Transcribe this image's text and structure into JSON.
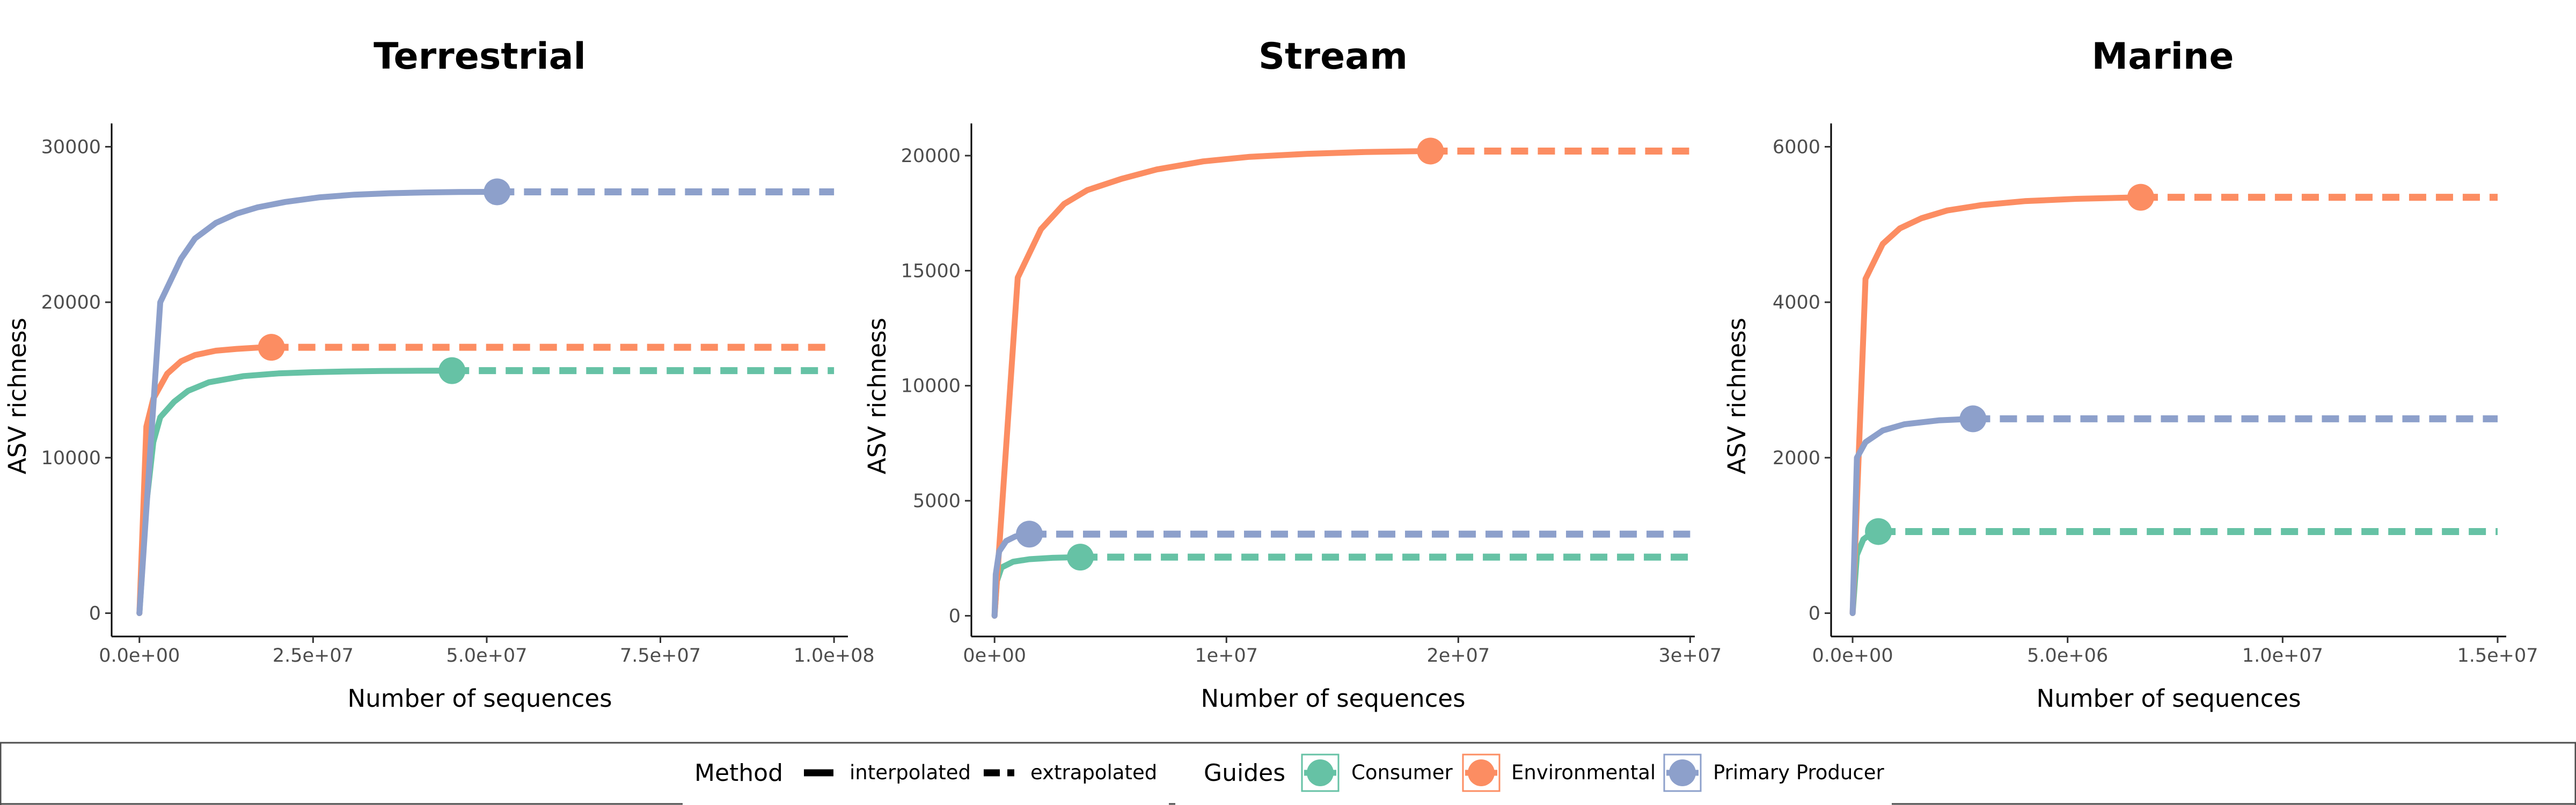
{
  "chart_data": [
    {
      "type": "line",
      "title": "Terrestrial",
      "xlabel": "Number of sequences",
      "ylabel": "ASV richness",
      "xlim": [
        -4000000,
        102000000
      ],
      "ylim": [
        -1500,
        31500
      ],
      "xticks": [
        0,
        25000000,
        50000000,
        75000000,
        100000000
      ],
      "xtick_labels": [
        "0.0e+00",
        "2.5e+07",
        "5.0e+07",
        "7.5e+07",
        "1.0e+08"
      ],
      "yticks": [
        0,
        10000,
        20000,
        30000
      ],
      "ytick_labels": [
        "0",
        "10000",
        "20000",
        "30000"
      ],
      "series": [
        {
          "name": "Consumer",
          "color": "#66c2a5",
          "observed": [
            45000000,
            15600
          ],
          "interpolated": [
            [
              0,
              0
            ],
            [
              1000000,
              7000
            ],
            [
              2000000,
              11000
            ],
            [
              3000000,
              12600
            ],
            [
              5000000,
              13600
            ],
            [
              7000000,
              14300
            ],
            [
              10000000,
              14850
            ],
            [
              15000000,
              15250
            ],
            [
              20000000,
              15420
            ],
            [
              25000000,
              15500
            ],
            [
              30000000,
              15550
            ],
            [
              35000000,
              15575
            ],
            [
              40000000,
              15590
            ],
            [
              45000000,
              15600
            ]
          ],
          "extrapolated": [
            [
              45000000,
              15600
            ],
            [
              100000000,
              15600
            ]
          ]
        },
        {
          "name": "Environmental",
          "color": "#fc8d62",
          "observed": [
            19000000,
            17100
          ],
          "interpolated": [
            [
              0,
              0
            ],
            [
              1000000,
              12000
            ],
            [
              2000000,
              13800
            ],
            [
              4000000,
              15400
            ],
            [
              6000000,
              16200
            ],
            [
              8000000,
              16600
            ],
            [
              11000000,
              16880
            ],
            [
              14000000,
              17000
            ],
            [
              17000000,
              17080
            ],
            [
              19000000,
              17100
            ]
          ],
          "extrapolated": [
            [
              19000000,
              17100
            ],
            [
              100000000,
              17100
            ]
          ]
        },
        {
          "name": "Primary Producer",
          "color": "#8da0cb",
          "observed": [
            51500000,
            27100
          ],
          "interpolated": [
            [
              0,
              0
            ],
            [
              1500000,
              10000
            ],
            [
              3000000,
              20000
            ],
            [
              6000000,
              22800
            ],
            [
              8000000,
              24100
            ],
            [
              11000000,
              25100
            ],
            [
              14000000,
              25700
            ],
            [
              17000000,
              26100
            ],
            [
              21000000,
              26450
            ],
            [
              26000000,
              26750
            ],
            [
              31000000,
              26920
            ],
            [
              36000000,
              27010
            ],
            [
              41000000,
              27060
            ],
            [
              46000000,
              27090
            ],
            [
              51500000,
              27100
            ]
          ],
          "extrapolated": [
            [
              51500000,
              27100
            ],
            [
              100000000,
              27100
            ]
          ]
        }
      ]
    },
    {
      "type": "line",
      "title": "Stream",
      "xlabel": "Number of sequences",
      "ylabel": "ASV richness",
      "xlim": [
        -1000000,
        30200000
      ],
      "ylim": [
        -900,
        21400
      ],
      "xticks": [
        0,
        10000000,
        20000000,
        30000000
      ],
      "xtick_labels": [
        "0e+00",
        "1e+07",
        "2e+07",
        "3e+07"
      ],
      "yticks": [
        0,
        5000,
        10000,
        15000,
        20000
      ],
      "ytick_labels": [
        "0",
        "5000",
        "10000",
        "15000",
        "20000"
      ],
      "series": [
        {
          "name": "Consumer",
          "color": "#66c2a5",
          "observed": [
            3700000,
            2550
          ],
          "interpolated": [
            [
              0,
              0
            ],
            [
              100000,
              1500
            ],
            [
              300000,
              2100
            ],
            [
              800000,
              2350
            ],
            [
              1500000,
              2460
            ],
            [
              2500000,
              2520
            ],
            [
              3700000,
              2550
            ]
          ],
          "extrapolated": [
            [
              3700000,
              2550
            ],
            [
              30000000,
              2550
            ]
          ]
        },
        {
          "name": "Environmental",
          "color": "#fc8d62",
          "observed": [
            18800000,
            20200
          ],
          "interpolated": [
            [
              0,
              0
            ],
            [
              1000000,
              14700
            ],
            [
              2000000,
              16800
            ],
            [
              3000000,
              17900
            ],
            [
              4000000,
              18500
            ],
            [
              5500000,
              19000
            ],
            [
              7000000,
              19400
            ],
            [
              9000000,
              19750
            ],
            [
              11000000,
              19950
            ],
            [
              13500000,
              20080
            ],
            [
              16000000,
              20160
            ],
            [
              18800000,
              20200
            ]
          ],
          "extrapolated": [
            [
              18800000,
              20200
            ],
            [
              30000000,
              20200
            ]
          ]
        },
        {
          "name": "Primary Producer",
          "color": "#8da0cb",
          "observed": [
            1500000,
            3550
          ],
          "interpolated": [
            [
              0,
              0
            ],
            [
              50000,
              1800
            ],
            [
              200000,
              2800
            ],
            [
              500000,
              3250
            ],
            [
              900000,
              3450
            ],
            [
              1500000,
              3550
            ]
          ],
          "extrapolated": [
            [
              1500000,
              3550
            ],
            [
              30000000,
              3550
            ]
          ]
        }
      ]
    },
    {
      "type": "line",
      "title": "Marine",
      "xlabel": "Number of sequences",
      "ylabel": "ASV richness",
      "xlim": [
        -500000,
        15200000
      ],
      "ylim": [
        -300,
        6300
      ],
      "xticks": [
        0,
        5000000,
        10000000,
        15000000
      ],
      "xtick_labels": [
        "0.0e+00",
        "5.0e+06",
        "1.0e+07",
        "1.5e+07"
      ],
      "yticks": [
        0,
        2000,
        4000,
        6000
      ],
      "ytick_labels": [
        "0",
        "2000",
        "4000",
        "6000"
      ],
      "series": [
        {
          "name": "Consumer",
          "color": "#66c2a5",
          "observed": [
            600000,
            1050
          ],
          "interpolated": [
            [
              0,
              0
            ],
            [
              100000,
              750
            ],
            [
              250000,
              950
            ],
            [
              400000,
              1010
            ],
            [
              600000,
              1050
            ]
          ],
          "extrapolated": [
            [
              600000,
              1050
            ],
            [
              15000000,
              1050
            ]
          ]
        },
        {
          "name": "Environmental",
          "color": "#fc8d62",
          "observed": [
            6700000,
            5350
          ],
          "interpolated": [
            [
              0,
              0
            ],
            [
              300000,
              4300
            ],
            [
              700000,
              4750
            ],
            [
              1100000,
              4950
            ],
            [
              1600000,
              5080
            ],
            [
              2200000,
              5180
            ],
            [
              3000000,
              5250
            ],
            [
              4000000,
              5300
            ],
            [
              5200000,
              5330
            ],
            [
              6700000,
              5350
            ]
          ],
          "extrapolated": [
            [
              6700000,
              5350
            ],
            [
              15000000,
              5350
            ]
          ]
        },
        {
          "name": "Primary Producer",
          "color": "#8da0cb",
          "observed": [
            2800000,
            2500
          ],
          "interpolated": [
            [
              0,
              0
            ],
            [
              100000,
              2000
            ],
            [
              300000,
              2200
            ],
            [
              700000,
              2350
            ],
            [
              1200000,
              2430
            ],
            [
              2000000,
              2480
            ],
            [
              2800000,
              2500
            ]
          ],
          "extrapolated": [
            [
              2800000,
              2500
            ],
            [
              15000000,
              2500
            ]
          ]
        }
      ]
    }
  ],
  "legend": {
    "method_title": "Method",
    "method_items": [
      {
        "label": "interpolated",
        "dash": "solid"
      },
      {
        "label": "extrapolated",
        "dash": "dashed"
      }
    ],
    "guides_title": "Guides",
    "guides_items": [
      {
        "label": "Consumer",
        "color": "#66c2a5"
      },
      {
        "label": "Environmental",
        "color": "#fc8d62"
      },
      {
        "label": "Primary Producer",
        "color": "#8da0cb"
      }
    ]
  }
}
